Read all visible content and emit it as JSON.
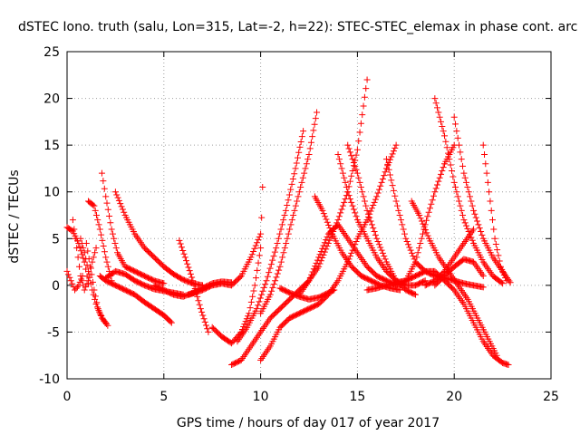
{
  "chart_data": {
    "type": "scatter",
    "title": "dSTEC Iono. truth (salu, Lon=315, Lat=-2, h=22): STEC-STEC_elemax in phase cont. arc",
    "xlabel": "GPS time / hours of day 017 of year 2017",
    "ylabel": "dSTEC  / TECUs",
    "xlim": [
      0,
      25
    ],
    "ylim": [
      -10,
      25
    ],
    "x_ticks": [
      "0",
      "5",
      "10",
      "15",
      "20",
      "25"
    ],
    "y_ticks": [
      "-10",
      "-5",
      "0",
      "5",
      "10",
      "15",
      "20",
      "25"
    ],
    "grid": true,
    "marker": "plus",
    "color": "#ff0000",
    "series": [
      {
        "x": [
          0.0,
          0.3,
          0.6,
          0.9,
          1.1
        ],
        "y": [
          6.2,
          5.8,
          4.5,
          2.5,
          0.2
        ]
      },
      {
        "x": [
          0.0,
          0.2,
          0.4,
          0.6,
          0.8
        ],
        "y": [
          1.5,
          0.5,
          -0.5,
          0.0,
          1.0
        ]
      },
      {
        "x": [
          0.3,
          0.5,
          0.7,
          0.9,
          1.1,
          1.3,
          1.5
        ],
        "y": [
          7.0,
          4.0,
          1.0,
          -0.5,
          0.5,
          2.5,
          4.0
        ]
      },
      {
        "x": [
          0.7,
          0.9,
          1.1,
          1.3,
          1.5,
          1.7,
          1.9,
          2.1
        ],
        "y": [
          5.0,
          3.5,
          1.5,
          -0.5,
          -2.0,
          -3.0,
          -3.8,
          -4.3
        ]
      },
      {
        "x": [
          1.0,
          1.2,
          1.4,
          1.6,
          1.8,
          2.0
        ],
        "y": [
          4.5,
          2.0,
          -0.5,
          -2.5,
          -3.5,
          -4.0
        ]
      },
      {
        "x": [
          1.1,
          1.4,
          1.7,
          2.0,
          2.3
        ],
        "y": [
          9.0,
          8.5,
          6.0,
          3.0,
          0.5
        ]
      },
      {
        "x": [
          1.8,
          2.0,
          2.3,
          2.6,
          3.0,
          3.5,
          4.0,
          4.5,
          5.0
        ],
        "y": [
          12.0,
          9.5,
          6.0,
          3.5,
          2.0,
          1.5,
          1.0,
          0.5,
          0.2
        ]
      },
      {
        "x": [
          2.5,
          3.0,
          3.5,
          4.0,
          4.5,
          5.0,
          5.5,
          6.0,
          6.5,
          7.0
        ],
        "y": [
          10.0,
          7.5,
          5.5,
          4.0,
          3.0,
          2.0,
          1.2,
          0.6,
          0.2,
          0.0
        ]
      },
      {
        "x": [
          1.7,
          2.0,
          2.5,
          3.0,
          3.5,
          4.0,
          4.5,
          5.0,
          5.4
        ],
        "y": [
          1.0,
          0.5,
          0.0,
          -0.5,
          -1.0,
          -1.8,
          -2.5,
          -3.2,
          -4.0
        ]
      },
      {
        "x": [
          2.0,
          2.5,
          3.0,
          3.5,
          4.0,
          4.5,
          5.0,
          5.5,
          6.0
        ],
        "y": [
          0.8,
          1.5,
          1.2,
          0.5,
          0.0,
          -0.4,
          -0.6,
          -0.8,
          -1.0
        ]
      },
      {
        "x": [
          4.5,
          5.0,
          5.5,
          6.0,
          6.5,
          7.0,
          7.5,
          8.0,
          8.5
        ],
        "y": [
          0.0,
          -0.5,
          -1.0,
          -1.2,
          -0.8,
          -0.3,
          0.2,
          0.4,
          0.3
        ]
      },
      {
        "x": [
          5.8,
          6.1,
          6.5,
          6.9,
          7.3
        ],
        "y": [
          4.8,
          3.0,
          0.5,
          -2.5,
          -5.0
        ]
      },
      {
        "x": [
          6.3,
          7.0,
          7.5,
          8.0,
          8.5,
          9.0,
          9.5,
          10.0
        ],
        "y": [
          -1.0,
          -0.5,
          0.0,
          0.2,
          0.0,
          1.0,
          3.0,
          5.5
        ]
      },
      {
        "x": [
          7.5,
          8.0,
          8.5,
          9.0,
          9.4,
          9.7,
          10.0,
          10.1
        ],
        "y": [
          -4.5,
          -5.5,
          -6.2,
          -5.0,
          -3.0,
          0.0,
          4.0,
          10.5
        ]
      },
      {
        "x": [
          8.5,
          9.0,
          9.5,
          10.0,
          10.5,
          11.0,
          11.5,
          12.0,
          12.5,
          13.0,
          13.5,
          14.0,
          14.5,
          15.0,
          15.5
        ],
        "y": [
          -8.5,
          -8.0,
          -6.5,
          -5.0,
          -3.5,
          -2.5,
          -1.5,
          -0.5,
          0.5,
          2.0,
          4.5,
          7.0,
          10.0,
          14.5,
          22.0
        ]
      },
      {
        "x": [
          10.0,
          10.5,
          11.0,
          11.5,
          12.0,
          12.5,
          13.0,
          13.5,
          14.0,
          14.5,
          15.0,
          15.5,
          16.0,
          16.5,
          17.0
        ],
        "y": [
          -8.0,
          -6.5,
          -4.5,
          -3.5,
          -3.0,
          -2.5,
          -2.0,
          -1.0,
          0.5,
          2.5,
          5.0,
          7.0,
          9.5,
          12.5,
          15.0
        ]
      },
      {
        "x": [
          10.0,
          10.5,
          11.0,
          11.5,
          12.0,
          12.5,
          12.9
        ],
        "y": [
          -3.0,
          -1.0,
          2.0,
          6.0,
          10.0,
          14.0,
          18.5
        ]
      },
      {
        "x": [
          8.8,
          9.3,
          9.8,
          10.3,
          10.8,
          11.3,
          11.8,
          12.2
        ],
        "y": [
          -6.0,
          -4.5,
          -2.5,
          0.5,
          4.0,
          8.0,
          12.5,
          16.5
        ]
      },
      {
        "x": [
          11.0,
          11.5,
          12.0,
          12.5,
          13.0,
          13.5,
          13.8
        ],
        "y": [
          -0.3,
          -0.8,
          -1.2,
          -1.5,
          -1.3,
          -0.8,
          -0.5
        ]
      },
      {
        "x": [
          12.0,
          12.5,
          13.0,
          13.5,
          14.0,
          14.5,
          15.0,
          15.5,
          16.0,
          16.5,
          17.0
        ],
        "y": [
          -1.0,
          0.5,
          3.0,
          5.5,
          6.5,
          5.0,
          3.5,
          2.0,
          1.0,
          0.5,
          0.0
        ]
      },
      {
        "x": [
          12.8,
          13.2,
          13.7,
          14.2,
          14.7,
          15.2,
          15.7,
          16.2,
          16.7,
          17.2
        ],
        "y": [
          9.5,
          8.0,
          5.5,
          3.5,
          2.0,
          1.0,
          0.5,
          0.0,
          -0.3,
          -0.5
        ]
      },
      {
        "x": [
          14.0,
          14.5,
          15.0,
          15.5,
          16.0,
          16.5,
          17.0,
          17.5,
          18.0,
          18.5
        ],
        "y": [
          14.0,
          10.0,
          7.0,
          5.0,
          3.0,
          1.5,
          0.5,
          0.0,
          0.0,
          0.5
        ]
      },
      {
        "x": [
          14.5,
          15.0,
          15.5,
          16.0,
          16.5,
          17.0,
          17.5,
          18.0
        ],
        "y": [
          15.0,
          12.0,
          8.0,
          5.0,
          2.5,
          0.5,
          -0.5,
          -1.0
        ]
      },
      {
        "x": [
          16.5,
          17.0,
          17.5,
          18.0,
          18.5,
          19.0,
          19.5,
          20.0,
          20.5,
          21.0,
          21.5
        ],
        "y": [
          13.5,
          9.0,
          5.0,
          2.5,
          1.5,
          1.0,
          0.8,
          0.5,
          0.2,
          0.0,
          -0.2
        ]
      },
      {
        "x": [
          17.0,
          17.5,
          18.0,
          18.5,
          19.0,
          19.5,
          20.0
        ],
        "y": [
          0.0,
          0.5,
          2.5,
          6.5,
          10.0,
          13.0,
          15.0
        ]
      },
      {
        "x": [
          15.5,
          16.0,
          16.5,
          17.0,
          17.5,
          18.0,
          18.5,
          19.0,
          19.5,
          20.0,
          20.5,
          21.0,
          21.5,
          22.0,
          22.5,
          22.8
        ],
        "y": [
          -0.5,
          -0.3,
          0.0,
          0.3,
          0.5,
          1.0,
          1.5,
          1.5,
          0.5,
          -0.5,
          -2.0,
          -4.0,
          -6.0,
          -7.5,
          -8.3,
          -8.5
        ]
      },
      {
        "x": [
          17.8,
          18.2,
          18.7,
          19.2,
          19.7,
          20.2,
          20.7,
          21.2,
          21.7,
          22.2
        ],
        "y": [
          9.0,
          7.5,
          5.0,
          3.0,
          1.5,
          0.0,
          -1.5,
          -3.5,
          -5.5,
          -7.5
        ]
      },
      {
        "x": [
          18.5,
          19.0,
          19.5,
          20.0,
          20.5,
          21.0
        ],
        "y": [
          0.0,
          0.5,
          1.5,
          3.0,
          4.5,
          6.0
        ]
      },
      {
        "x": [
          19.0,
          19.5,
          20.0,
          20.5,
          21.0,
          21.5,
          22.0,
          22.5
        ],
        "y": [
          20.0,
          16.0,
          11.0,
          7.0,
          4.5,
          2.5,
          1.0,
          0.2
        ]
      },
      {
        "x": [
          20.0,
          20.5,
          21.0,
          21.5,
          22.0,
          22.5,
          22.9
        ],
        "y": [
          18.0,
          12.0,
          8.0,
          5.0,
          3.0,
          1.5,
          0.3
        ]
      },
      {
        "x": [
          21.5,
          21.8,
          22.1,
          22.4,
          22.7
        ],
        "y": [
          15.0,
          10.0,
          5.0,
          2.0,
          0.5
        ]
      },
      {
        "x": [
          19.0,
          19.5,
          20.0,
          20.5,
          21.0,
          21.5
        ],
        "y": [
          0.0,
          1.0,
          2.0,
          2.8,
          2.5,
          1.0
        ]
      }
    ]
  }
}
